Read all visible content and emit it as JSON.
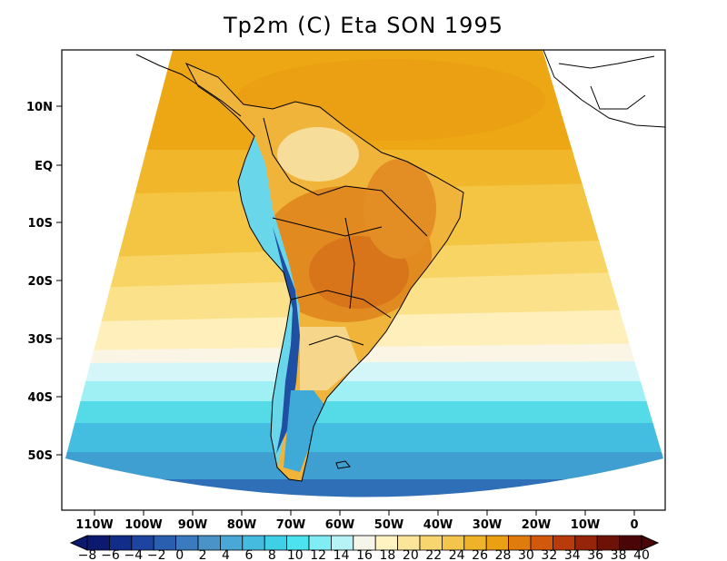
{
  "title": "Tp2m (C) Eta SON 1995",
  "map": {
    "lat_labels": [
      "10N",
      "EQ",
      "10S",
      "20S",
      "30S",
      "40S",
      "50S"
    ],
    "lon_labels": [
      "110W",
      "100W",
      "90W",
      "80W",
      "70W",
      "60W",
      "50W",
      "40W",
      "30W",
      "20W",
      "10W",
      "0"
    ]
  },
  "colorbar": {
    "labels": [
      "-8",
      "-6",
      "-4",
      "-2",
      "0",
      "2",
      "4",
      "6",
      "8",
      "10",
      "12",
      "14",
      "16",
      "18",
      "20",
      "22",
      "24",
      "26",
      "28",
      "30",
      "32",
      "34",
      "36",
      "38",
      "40"
    ],
    "colors": [
      "#0b1a6e",
      "#122c8a",
      "#1c44a0",
      "#2a5fb0",
      "#3a7bbf",
      "#4a93c9",
      "#4aa8d6",
      "#45bcdf",
      "#3fcfe6",
      "#4de3ee",
      "#7fedf3",
      "#b6f3f6",
      "#f5f5e9",
      "#fff3c2",
      "#fbe59a",
      "#f8d56f",
      "#f3c54c",
      "#efb32a",
      "#eaa012",
      "#e07b0e",
      "#d2580c",
      "#b93a0a",
      "#962409",
      "#6e1208",
      "#4a0606"
    ]
  }
}
